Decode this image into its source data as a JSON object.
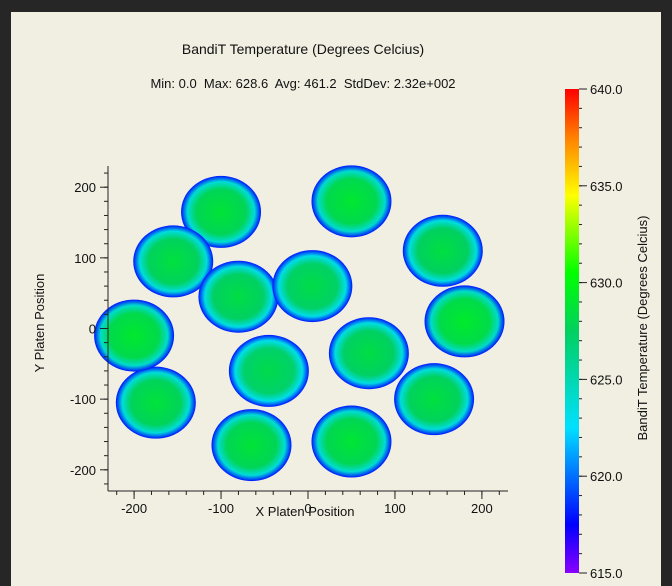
{
  "chart_data": {
    "type": "heatmap",
    "title": "BandiT Temperature (Degrees Celcius)",
    "stats": "Min: 0.0  Max: 628.6  Avg: 461.2  StdDev: 2.32e+002",
    "xlabel": "X Platen Position",
    "ylabel": "Y Platen Position",
    "xlim": [
      -230,
      230
    ],
    "ylim": [
      -230,
      230
    ],
    "x_ticks": [
      -200,
      -100,
      0,
      100,
      200
    ],
    "y_ticks": [
      -200,
      -100,
      0,
      100,
      200
    ],
    "x_tick_labels": [
      "-200",
      "-100",
      "0",
      "100",
      "200"
    ],
    "y_tick_labels": [
      "-200",
      "-100",
      "0",
      "100",
      "200"
    ],
    "colorbar": {
      "label": "BandiT Temperature (Degrees Celcius)",
      "range": [
        615.0,
        640.0
      ],
      "ticks": [
        640.0,
        635.0,
        630.0,
        625.0,
        620.0,
        615.0
      ],
      "tick_labels": [
        "640.0",
        "635.0",
        "630.0",
        "625.0",
        "620.0",
        "615.0"
      ]
    },
    "wafers": [
      {
        "x": -100,
        "y": 165,
        "temperature": 627.8
      },
      {
        "x": 50,
        "y": 180,
        "temperature": 628.0
      },
      {
        "x": 155,
        "y": 110,
        "temperature": 627.5
      },
      {
        "x": 180,
        "y": 10,
        "temperature": 628.2
      },
      {
        "x": 145,
        "y": -100,
        "temperature": 627.6
      },
      {
        "x": 50,
        "y": -160,
        "temperature": 627.9
      },
      {
        "x": -65,
        "y": -165,
        "temperature": 627.8
      },
      {
        "x": -175,
        "y": -105,
        "temperature": 627.7
      },
      {
        "x": -200,
        "y": -10,
        "temperature": 628.1
      },
      {
        "x": -155,
        "y": 95,
        "temperature": 627.6
      },
      {
        "x": -80,
        "y": 45,
        "temperature": 627.4
      },
      {
        "x": 5,
        "y": 60,
        "temperature": 627.3
      },
      {
        "x": 70,
        "y": -35,
        "temperature": 627.4
      },
      {
        "x": -45,
        "y": -60,
        "temperature": 627.2
      }
    ]
  }
}
